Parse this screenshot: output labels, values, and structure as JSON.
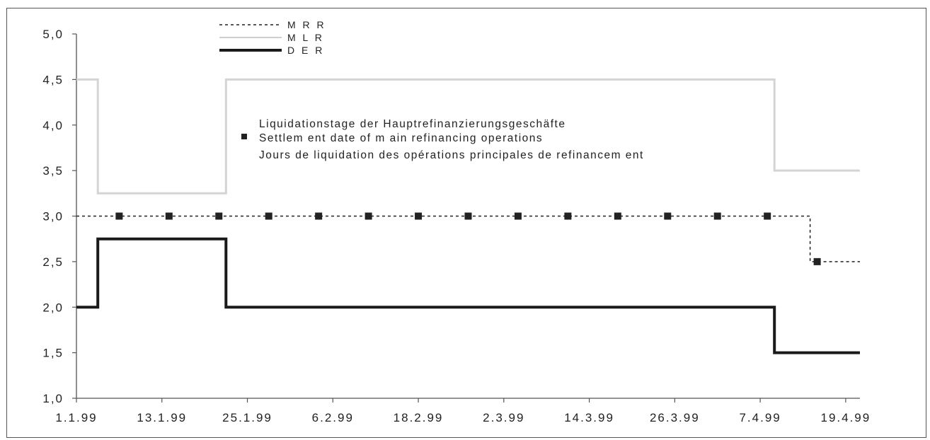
{
  "chart_data": {
    "type": "line",
    "x_axis": {
      "ticks": [
        "1.1.99",
        "13.1.99",
        "25.1.99",
        "6.2.99",
        "18.2.99",
        "2.3.99",
        "14.3.99",
        "26.3.99",
        "7.4.99",
        "19.4.99"
      ]
    },
    "y_axis": {
      "ticks": [
        "1,0",
        "1,5",
        "2,0",
        "2,5",
        "3,0",
        "3,5",
        "4,0",
        "4,5",
        "5,0"
      ],
      "ylim": [
        1.0,
        5.0
      ]
    },
    "xlim": [
      "1999-01-01",
      "1999-04-21"
    ],
    "series": [
      {
        "name": "MRR",
        "style": "dashed",
        "color": "#222222",
        "points": [
          {
            "x": "1999-01-01",
            "y": 3.0
          },
          {
            "x": "1999-04-14",
            "y": 3.0
          },
          {
            "x": "1999-04-14",
            "y": 2.5
          },
          {
            "x": "1999-04-21",
            "y": 2.5
          }
        ]
      },
      {
        "name": "MLR",
        "style": "solid-light",
        "color": "#d4d4d4",
        "points": [
          {
            "x": "1999-01-01",
            "y": 4.5
          },
          {
            "x": "1999-01-04",
            "y": 4.5
          },
          {
            "x": "1999-01-04",
            "y": 3.25
          },
          {
            "x": "1999-01-22",
            "y": 3.25
          },
          {
            "x": "1999-01-22",
            "y": 4.5
          },
          {
            "x": "1999-04-09",
            "y": 4.5
          },
          {
            "x": "1999-04-09",
            "y": 3.5
          },
          {
            "x": "1999-04-21",
            "y": 3.5
          }
        ]
      },
      {
        "name": "DER",
        "style": "solid-bold",
        "color": "#1a1a1a",
        "points": [
          {
            "x": "1999-01-01",
            "y": 2.0
          },
          {
            "x": "1999-01-04",
            "y": 2.0
          },
          {
            "x": "1999-01-04",
            "y": 2.75
          },
          {
            "x": "1999-01-22",
            "y": 2.75
          },
          {
            "x": "1999-01-22",
            "y": 2.0
          },
          {
            "x": "1999-04-09",
            "y": 2.0
          },
          {
            "x": "1999-04-09",
            "y": 1.5
          },
          {
            "x": "1999-04-21",
            "y": 1.5
          }
        ]
      }
    ],
    "settlement_dates": {
      "name": "Settlement date of main refinancing operations",
      "points": [
        {
          "x": "1999-01-07",
          "y": 3.0
        },
        {
          "x": "1999-01-14",
          "y": 3.0
        },
        {
          "x": "1999-01-21",
          "y": 3.0
        },
        {
          "x": "1999-01-28",
          "y": 3.0
        },
        {
          "x": "1999-02-04",
          "y": 3.0
        },
        {
          "x": "1999-02-11",
          "y": 3.0
        },
        {
          "x": "1999-02-18",
          "y": 3.0
        },
        {
          "x": "1999-02-25",
          "y": 3.0
        },
        {
          "x": "1999-03-04",
          "y": 3.0
        },
        {
          "x": "1999-03-11",
          "y": 3.0
        },
        {
          "x": "1999-03-18",
          "y": 3.0
        },
        {
          "x": "1999-03-25",
          "y": 3.0
        },
        {
          "x": "1999-04-01",
          "y": 3.0
        },
        {
          "x": "1999-04-08",
          "y": 3.0
        },
        {
          "x": "1999-04-15",
          "y": 2.5
        }
      ]
    },
    "legend": {
      "placement": "top-left",
      "entries": [
        "M R R",
        "M L R",
        "D E R"
      ]
    },
    "annotation": {
      "lines": [
        "Liquidationstage der Hauptrefinanzierungsgeschäfte",
        "Settlem ent date of m ain refinancing operations",
        "Jours de liquidation des opérations principales de refinancem ent"
      ]
    },
    "grid": false
  }
}
